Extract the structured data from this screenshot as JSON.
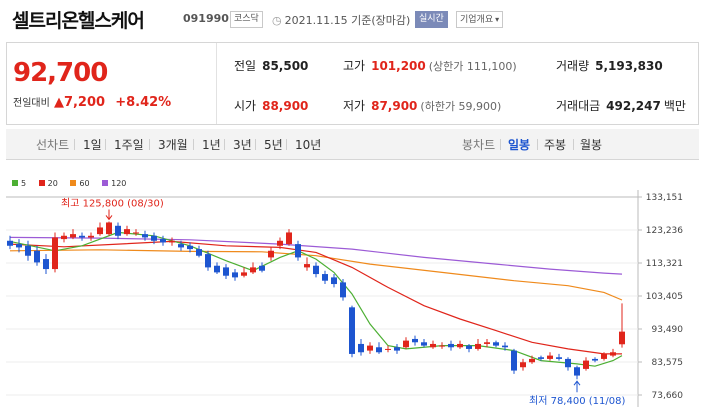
{
  "header": {
    "title": "셀트리온헬스케어",
    "code": "091990",
    "market": "코스닥",
    "date": "2021.11.15 기준(장마감)",
    "realtime": "실시간",
    "company_info": "기업개요"
  },
  "quote": {
    "current": "92,700",
    "change_label": "전일대비",
    "change_value": "7,200",
    "change_pct": "+8.42%",
    "prev_close_label": "전일",
    "prev_close": "85,500",
    "high_label": "고가",
    "high": "101,200",
    "upper_limit": "(상한가 111,100)",
    "volume_label": "거래량",
    "volume": "5,193,830",
    "open_label": "시가",
    "open": "88,900",
    "low_label": "저가",
    "low": "87,900",
    "lower_limit": "(하한가 59,900)",
    "amount_label": "거래대금",
    "amount": "492,247",
    "amount_unit": "백만"
  },
  "tabs": {
    "line_header": "선차트",
    "line_periods": [
      "1일",
      "1주일",
      "3개월",
      "1년",
      "3년",
      "5년",
      "10년"
    ],
    "candle_header": "봉차트",
    "candle_periods": [
      "일봉",
      "주봉",
      "월봉"
    ],
    "candle_selected": "일봉"
  },
  "colors": {
    "up": "#e0251b",
    "down": "#1d55d0",
    "ma5": "#4caf33",
    "ma20": "#e0251b",
    "ma60": "#ef8a1c",
    "ma120": "#9c5bd6"
  },
  "chart_data": {
    "type": "candlestick",
    "ma_legend": [
      {
        "name": "5",
        "color": "#4caf33"
      },
      {
        "name": "20",
        "color": "#e0251b"
      },
      {
        "name": "60",
        "color": "#ef8a1c"
      },
      {
        "name": "120",
        "color": "#9c5bd6"
      }
    ],
    "y_ticks": [
      "133,151",
      "123,236",
      "113,321",
      "103,405",
      "93,490",
      "83,575",
      "73,660"
    ],
    "ylim": [
      73660,
      133151
    ],
    "annotations": {
      "high": "최고 125,800 (08/30)",
      "low": "최저 78,400 (11/08)"
    },
    "candles": [
      {
        "o": 120000,
        "c": 118500,
        "h": 121500,
        "l": 117500
      },
      {
        "o": 119000,
        "c": 118000,
        "h": 120500,
        "l": 116500
      },
      {
        "o": 118500,
        "c": 115500,
        "h": 120000,
        "l": 114000
      },
      {
        "o": 117000,
        "c": 113500,
        "h": 118500,
        "l": 112500
      },
      {
        "o": 114500,
        "c": 111500,
        "h": 116000,
        "l": 110000
      },
      {
        "o": 111500,
        "c": 121000,
        "h": 122500,
        "l": 110500
      },
      {
        "o": 120500,
        "c": 121500,
        "h": 122500,
        "l": 119500
      },
      {
        "o": 121000,
        "c": 122000,
        "h": 123500,
        "l": 120500
      },
      {
        "o": 121500,
        "c": 121000,
        "h": 122500,
        "l": 120000
      },
      {
        "o": 121000,
        "c": 121500,
        "h": 122500,
        "l": 120000
      },
      {
        "o": 122000,
        "c": 124000,
        "h": 125500,
        "l": 121500
      },
      {
        "o": 122000,
        "c": 125500,
        "h": 125800,
        "l": 121500
      },
      {
        "o": 124500,
        "c": 121500,
        "h": 125500,
        "l": 120500
      },
      {
        "o": 122000,
        "c": 123500,
        "h": 124500,
        "l": 121500
      },
      {
        "o": 122500,
        "c": 122500,
        "h": 123500,
        "l": 121500
      },
      {
        "o": 122000,
        "c": 121000,
        "h": 123000,
        "l": 120000
      },
      {
        "o": 121500,
        "c": 120000,
        "h": 122500,
        "l": 119000
      },
      {
        "o": 120500,
        "c": 119500,
        "h": 121500,
        "l": 118500
      },
      {
        "o": 119500,
        "c": 120000,
        "h": 121000,
        "l": 118500
      },
      {
        "o": 119000,
        "c": 118000,
        "h": 120000,
        "l": 117000
      },
      {
        "o": 118500,
        "c": 117500,
        "h": 119500,
        "l": 116500
      },
      {
        "o": 117500,
        "c": 115500,
        "h": 118500,
        "l": 115000
      },
      {
        "o": 116000,
        "c": 112000,
        "h": 117000,
        "l": 111000
      },
      {
        "o": 112500,
        "c": 110500,
        "h": 113500,
        "l": 110000
      },
      {
        "o": 112000,
        "c": 109500,
        "h": 113000,
        "l": 108500
      },
      {
        "o": 110500,
        "c": 109000,
        "h": 111500,
        "l": 108000
      },
      {
        "o": 109500,
        "c": 110500,
        "h": 112000,
        "l": 109000
      },
      {
        "o": 110500,
        "c": 112000,
        "h": 113500,
        "l": 110000
      },
      {
        "o": 112500,
        "c": 111000,
        "h": 113500,
        "l": 110500
      },
      {
        "o": 115000,
        "c": 117000,
        "h": 118000,
        "l": 114000
      },
      {
        "o": 118500,
        "c": 120000,
        "h": 121000,
        "l": 117500
      },
      {
        "o": 119000,
        "c": 122500,
        "h": 123500,
        "l": 118500
      },
      {
        "o": 119000,
        "c": 115000,
        "h": 120000,
        "l": 114000
      },
      {
        "o": 112000,
        "c": 113000,
        "h": 115000,
        "l": 111000
      },
      {
        "o": 112500,
        "c": 110000,
        "h": 113500,
        "l": 109000
      },
      {
        "o": 110000,
        "c": 108000,
        "h": 111000,
        "l": 107000
      },
      {
        "o": 109000,
        "c": 107000,
        "h": 110000,
        "l": 106000
      },
      {
        "o": 107500,
        "c": 103000,
        "h": 108500,
        "l": 102000
      },
      {
        "o": 100000,
        "c": 86000,
        "h": 100500,
        "l": 85000
      },
      {
        "o": 89000,
        "c": 86500,
        "h": 90500,
        "l": 85500
      },
      {
        "o": 87000,
        "c": 88500,
        "h": 89500,
        "l": 86000
      },
      {
        "o": 88000,
        "c": 86500,
        "h": 89500,
        "l": 86000
      },
      {
        "o": 87500,
        "c": 87500,
        "h": 88500,
        "l": 86500
      },
      {
        "o": 88000,
        "c": 87000,
        "h": 89000,
        "l": 86000
      },
      {
        "o": 88000,
        "c": 90000,
        "h": 91000,
        "l": 87500
      },
      {
        "o": 90500,
        "c": 89500,
        "h": 91500,
        "l": 88500
      },
      {
        "o": 89500,
        "c": 88500,
        "h": 90500,
        "l": 88000
      },
      {
        "o": 88000,
        "c": 89000,
        "h": 90000,
        "l": 87500
      },
      {
        "o": 88500,
        "c": 88500,
        "h": 89500,
        "l": 87500
      },
      {
        "o": 89000,
        "c": 88000,
        "h": 90000,
        "l": 87000
      },
      {
        "o": 88000,
        "c": 89000,
        "h": 90000,
        "l": 87500
      },
      {
        "o": 88500,
        "c": 87500,
        "h": 89000,
        "l": 86500
      },
      {
        "o": 87500,
        "c": 89000,
        "h": 90500,
        "l": 87000
      },
      {
        "o": 89000,
        "c": 89500,
        "h": 90500,
        "l": 88000
      },
      {
        "o": 89500,
        "c": 88500,
        "h": 90000,
        "l": 88000
      },
      {
        "o": 88500,
        "c": 88000,
        "h": 89500,
        "l": 87000
      },
      {
        "o": 87000,
        "c": 81000,
        "h": 87500,
        "l": 80000
      },
      {
        "o": 82000,
        "c": 83500,
        "h": 84500,
        "l": 81000
      },
      {
        "o": 83500,
        "c": 84500,
        "h": 85500,
        "l": 83000
      },
      {
        "o": 85000,
        "c": 84500,
        "h": 85500,
        "l": 84000
      },
      {
        "o": 84500,
        "c": 85500,
        "h": 86500,
        "l": 84000
      },
      {
        "o": 85000,
        "c": 84500,
        "h": 86000,
        "l": 84000
      },
      {
        "o": 84500,
        "c": 82000,
        "h": 85000,
        "l": 81000
      },
      {
        "o": 82000,
        "c": 79500,
        "h": 82500,
        "l": 78400
      },
      {
        "o": 81500,
        "c": 84000,
        "h": 85000,
        "l": 81000
      },
      {
        "o": 84500,
        "c": 84000,
        "h": 85000,
        "l": 83500
      },
      {
        "o": 84500,
        "c": 86000,
        "h": 86500,
        "l": 84000
      },
      {
        "o": 85500,
        "c": 86500,
        "h": 87500,
        "l": 85000
      },
      {
        "o": 88900,
        "c": 92700,
        "h": 101200,
        "l": 87900
      }
    ],
    "ma5": [
      [
        0,
        119800
      ],
      [
        5,
        117000
      ],
      [
        8,
        118500
      ],
      [
        12,
        122500
      ],
      [
        16,
        121500
      ],
      [
        20,
        118500
      ],
      [
        24,
        114000
      ],
      [
        27,
        111000
      ],
      [
        30,
        115000
      ],
      [
        32,
        117000
      ],
      [
        34,
        114500
      ],
      [
        36,
        110500
      ],
      [
        38,
        104000
      ],
      [
        40,
        95000
      ],
      [
        42,
        88500
      ],
      [
        44,
        87500
      ],
      [
        48,
        88500
      ],
      [
        52,
        88500
      ],
      [
        56,
        87000
      ],
      [
        59,
        84000
      ],
      [
        63,
        83000
      ],
      [
        65,
        82300
      ],
      [
        67,
        84000
      ],
      [
        68,
        85500
      ]
    ],
    "ma20": [
      [
        0,
        119000
      ],
      [
        6,
        118200
      ],
      [
        12,
        119000
      ],
      [
        18,
        119800
      ],
      [
        24,
        118500
      ],
      [
        30,
        118000
      ],
      [
        34,
        116500
      ],
      [
        38,
        112000
      ],
      [
        42,
        106000
      ],
      [
        46,
        100500
      ],
      [
        50,
        96500
      ],
      [
        54,
        93000
      ],
      [
        58,
        89500
      ],
      [
        62,
        87500
      ],
      [
        66,
        86000
      ],
      [
        68,
        86000
      ]
    ],
    "ma60": [
      [
        0,
        117000
      ],
      [
        10,
        117300
      ],
      [
        20,
        116800
      ],
      [
        28,
        116700
      ],
      [
        34,
        115500
      ],
      [
        40,
        113000
      ],
      [
        48,
        110500
      ],
      [
        56,
        108000
      ],
      [
        62,
        106500
      ],
      [
        66,
        104500
      ],
      [
        68,
        102200
      ]
    ],
    "ma120": [
      [
        0,
        121000
      ],
      [
        10,
        120800
      ],
      [
        20,
        120300
      ],
      [
        30,
        119000
      ],
      [
        38,
        117500
      ],
      [
        46,
        115000
      ],
      [
        54,
        113000
      ],
      [
        60,
        111500
      ],
      [
        66,
        110300
      ],
      [
        68,
        110000
      ]
    ]
  }
}
